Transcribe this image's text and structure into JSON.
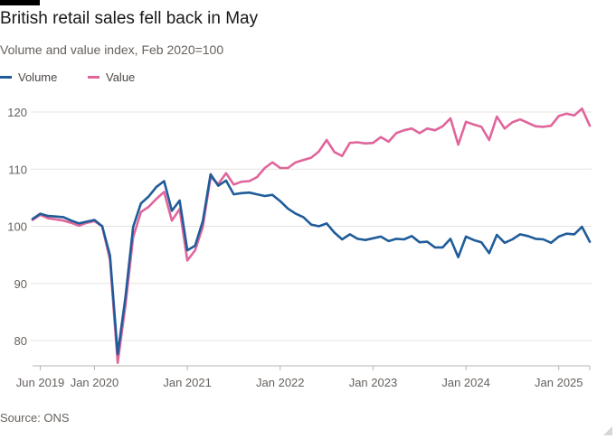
{
  "header": {
    "title": "British retail sales fell back in May",
    "subtitle": "Volume and value index, Feb 2020=100"
  },
  "footer": {
    "source": "Source: ONS"
  },
  "colors": {
    "volume": "#1f5c99",
    "value": "#e0659b",
    "grid": "#e6e3df",
    "text": "#66605c"
  },
  "chart_data": {
    "type": "line",
    "title": "British retail sales fell back in May",
    "subtitle": "Volume and value index, Feb 2020=100",
    "xlabel": "",
    "ylabel": "",
    "ylim": [
      75,
      123
    ],
    "yticks": [
      80,
      90,
      100,
      110,
      120
    ],
    "xticks": [
      {
        "label": "Jun 2019",
        "date": "2019-06"
      },
      {
        "label": "Jan 2020",
        "date": "2020-01"
      },
      {
        "label": "Jan 2021",
        "date": "2021-01"
      },
      {
        "label": "Jan 2022",
        "date": "2022-01"
      },
      {
        "label": "Jan 2023",
        "date": "2023-01"
      },
      {
        "label": "Jan 2024",
        "date": "2024-01"
      },
      {
        "label": "Jan 2025",
        "date": "2025-01"
      }
    ],
    "grid": true,
    "legend_position": "top-left",
    "x_start": "2019-05",
    "x_end": "2025-05",
    "series": [
      {
        "name": "Volume",
        "color": "#1f5c99",
        "points": [
          [
            "2019-05",
            101.3
          ],
          [
            "2019-06",
            102.2
          ],
          [
            "2019-07",
            101.8
          ],
          [
            "2019-08",
            101.7
          ],
          [
            "2019-09",
            101.6
          ],
          [
            "2019-10",
            101.0
          ],
          [
            "2019-11",
            100.5
          ],
          [
            "2019-12",
            100.8
          ],
          [
            "2020-01",
            101.1
          ],
          [
            "2020-02",
            100.0
          ],
          [
            "2020-03",
            94.9
          ],
          [
            "2020-04",
            77.6
          ],
          [
            "2020-05",
            87.6
          ],
          [
            "2020-06",
            99.9
          ],
          [
            "2020-07",
            104.0
          ],
          [
            "2020-08",
            105.2
          ],
          [
            "2020-09",
            106.9
          ],
          [
            "2020-10",
            107.9
          ],
          [
            "2020-11",
            102.7
          ],
          [
            "2020-12",
            104.5
          ],
          [
            "2021-01",
            95.8
          ],
          [
            "2021-02",
            96.6
          ],
          [
            "2021-03",
            100.9
          ],
          [
            "2021-04",
            109.1
          ],
          [
            "2021-05",
            107.1
          ],
          [
            "2021-06",
            108.0
          ],
          [
            "2021-07",
            105.6
          ],
          [
            "2021-08",
            105.8
          ],
          [
            "2021-09",
            105.9
          ],
          [
            "2021-10",
            105.6
          ],
          [
            "2021-11",
            105.3
          ],
          [
            "2021-12",
            105.5
          ],
          [
            "2022-01",
            104.4
          ],
          [
            "2022-02",
            103.1
          ],
          [
            "2022-03",
            102.2
          ],
          [
            "2022-04",
            101.6
          ],
          [
            "2022-05",
            100.3
          ],
          [
            "2022-06",
            100.0
          ],
          [
            "2022-07",
            100.5
          ],
          [
            "2022-08",
            98.9
          ],
          [
            "2022-09",
            97.7
          ],
          [
            "2022-10",
            98.6
          ],
          [
            "2022-11",
            97.8
          ],
          [
            "2022-12",
            97.6
          ],
          [
            "2023-01",
            97.9
          ],
          [
            "2023-02",
            98.2
          ],
          [
            "2023-03",
            97.4
          ],
          [
            "2023-04",
            97.8
          ],
          [
            "2023-05",
            97.7
          ],
          [
            "2023-06",
            98.3
          ],
          [
            "2023-07",
            97.2
          ],
          [
            "2023-08",
            97.3
          ],
          [
            "2023-09",
            96.3
          ],
          [
            "2023-10",
            96.3
          ],
          [
            "2023-11",
            97.8
          ],
          [
            "2023-12",
            94.6
          ],
          [
            "2024-01",
            98.2
          ],
          [
            "2024-02",
            97.6
          ],
          [
            "2024-03",
            97.2
          ],
          [
            "2024-04",
            95.3
          ],
          [
            "2024-05",
            98.5
          ],
          [
            "2024-06",
            97.1
          ],
          [
            "2024-07",
            97.7
          ],
          [
            "2024-08",
            98.6
          ],
          [
            "2024-09",
            98.3
          ],
          [
            "2024-10",
            97.8
          ],
          [
            "2024-11",
            97.7
          ],
          [
            "2024-12",
            97.1
          ],
          [
            "2025-01",
            98.2
          ],
          [
            "2025-02",
            98.7
          ],
          [
            "2025-03",
            98.6
          ],
          [
            "2025-04",
            99.9
          ],
          [
            "2025-05",
            97.3
          ]
        ]
      },
      {
        "name": "Value",
        "color": "#e0659b",
        "points": [
          [
            "2019-05",
            101.1
          ],
          [
            "2019-06",
            102.0
          ],
          [
            "2019-07",
            101.4
          ],
          [
            "2019-08",
            101.2
          ],
          [
            "2019-09",
            101.0
          ],
          [
            "2019-10",
            100.6
          ],
          [
            "2019-11",
            100.1
          ],
          [
            "2019-12",
            100.6
          ],
          [
            "2020-01",
            100.9
          ],
          [
            "2020-02",
            100.0
          ],
          [
            "2020-03",
            94.1
          ],
          [
            "2020-04",
            76.1
          ],
          [
            "2020-05",
            86.2
          ],
          [
            "2020-06",
            98.1
          ],
          [
            "2020-07",
            102.5
          ],
          [
            "2020-08",
            103.4
          ],
          [
            "2020-09",
            104.8
          ],
          [
            "2020-10",
            106.0
          ],
          [
            "2020-11",
            101.0
          ],
          [
            "2020-12",
            103.0
          ],
          [
            "2021-01",
            94.0
          ],
          [
            "2021-02",
            95.8
          ],
          [
            "2021-03",
            99.9
          ],
          [
            "2021-04",
            108.6
          ],
          [
            "2021-05",
            107.4
          ],
          [
            "2021-06",
            109.3
          ],
          [
            "2021-07",
            107.3
          ],
          [
            "2021-08",
            107.8
          ],
          [
            "2021-09",
            107.9
          ],
          [
            "2021-10",
            108.6
          ],
          [
            "2021-11",
            110.2
          ],
          [
            "2021-12",
            111.2
          ],
          [
            "2022-01",
            110.2
          ],
          [
            "2022-02",
            110.2
          ],
          [
            "2022-03",
            111.2
          ],
          [
            "2022-04",
            111.6
          ],
          [
            "2022-05",
            112.0
          ],
          [
            "2022-06",
            113.1
          ],
          [
            "2022-07",
            115.1
          ],
          [
            "2022-08",
            113.0
          ],
          [
            "2022-09",
            112.3
          ],
          [
            "2022-10",
            114.6
          ],
          [
            "2022-11",
            114.7
          ],
          [
            "2022-12",
            114.5
          ],
          [
            "2023-01",
            114.6
          ],
          [
            "2023-02",
            115.6
          ],
          [
            "2023-03",
            114.8
          ],
          [
            "2023-04",
            116.3
          ],
          [
            "2023-05",
            116.8
          ],
          [
            "2023-06",
            117.1
          ],
          [
            "2023-07",
            116.3
          ],
          [
            "2023-08",
            117.1
          ],
          [
            "2023-09",
            116.8
          ],
          [
            "2023-10",
            117.5
          ],
          [
            "2023-11",
            118.9
          ],
          [
            "2023-12",
            114.3
          ],
          [
            "2024-01",
            118.3
          ],
          [
            "2024-02",
            117.8
          ],
          [
            "2024-03",
            117.4
          ],
          [
            "2024-04",
            115.1
          ],
          [
            "2024-05",
            119.2
          ],
          [
            "2024-06",
            117.1
          ],
          [
            "2024-07",
            118.2
          ],
          [
            "2024-08",
            118.7
          ],
          [
            "2024-09",
            118.1
          ],
          [
            "2024-10",
            117.5
          ],
          [
            "2024-11",
            117.4
          ],
          [
            "2024-12",
            117.6
          ],
          [
            "2025-01",
            119.3
          ],
          [
            "2025-02",
            119.7
          ],
          [
            "2025-03",
            119.4
          ],
          [
            "2025-04",
            120.6
          ],
          [
            "2025-05",
            117.6
          ]
        ]
      }
    ]
  }
}
